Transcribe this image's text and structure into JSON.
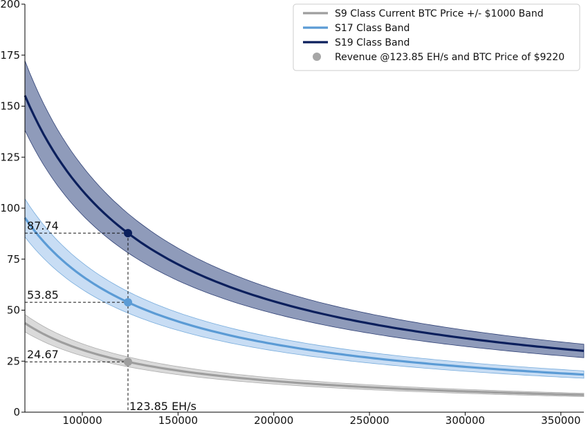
{
  "chart_data": {
    "type": "line",
    "xlim": [
      70000,
      362000
    ],
    "ylim": [
      0,
      200
    ],
    "x_ticks": [
      100000,
      150000,
      200000,
      250000,
      300000,
      350000
    ],
    "y_ticks": [
      0,
      25,
      50,
      75,
      100,
      125,
      150,
      175,
      200
    ],
    "grid": false,
    "legend_position": "top-right",
    "x_start": 70000,
    "x_end": 362000,
    "series": [
      {
        "name": "S9 Class Current BTC Price +/- $1000 Band",
        "color": "#9e9e9e",
        "band_color": "#cfcfcf",
        "center_at_marker": 24.67,
        "band_relative_halfwidth": 0.098
      },
      {
        "name": "S17 Class Band",
        "color": "#5b9bd5",
        "band_color": "#b9d4f1",
        "center_at_marker": 53.85,
        "band_relative_halfwidth": 0.098
      },
      {
        "name": "S19 Class Band",
        "color": "#0b1f5c",
        "band_color": "#6f7fa6",
        "center_at_marker": 87.74,
        "band_relative_halfwidth": 0.11
      }
    ],
    "marker": {
      "legend_label": "Revenue @123.85 EH/s and BTC Price of $9220",
      "x": 123850,
      "x_label": "123.85 EH/s",
      "points": [
        {
          "value": 87.74,
          "label": "87.74",
          "color": "#0b1f5c"
        },
        {
          "value": 53.85,
          "label": "53.85",
          "color": "#5b9bd5"
        },
        {
          "value": 24.67,
          "label": "24.67",
          "color": "#9e9e9e"
        }
      ]
    }
  }
}
